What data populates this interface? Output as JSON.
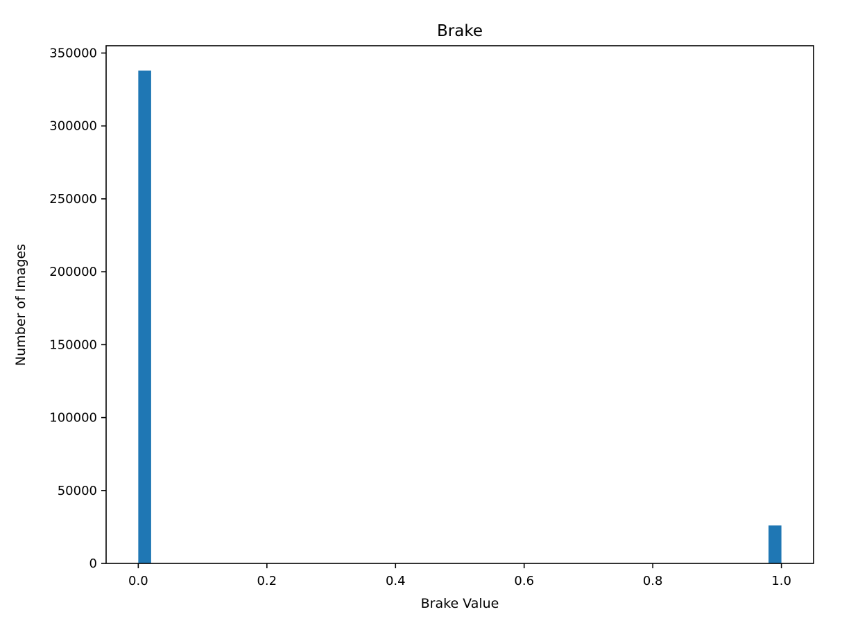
{
  "chart_data": {
    "type": "bar",
    "title": "Brake",
    "xlabel": "Brake Value",
    "ylabel": "Number of Images",
    "xlim": [
      -0.05,
      1.05
    ],
    "ylim": [
      0,
      355000
    ],
    "xticks": [
      0.0,
      0.2,
      0.4,
      0.6,
      0.8,
      1.0
    ],
    "xtick_labels": [
      "0.0",
      "0.2",
      "0.4",
      "0.6",
      "0.8",
      "1.0"
    ],
    "yticks": [
      0,
      50000,
      100000,
      150000,
      200000,
      250000,
      300000,
      350000
    ],
    "ytick_labels": [
      "0",
      "50000",
      "100000",
      "150000",
      "200000",
      "250000",
      "300000",
      "350000"
    ],
    "bins": 50,
    "bars": [
      {
        "x_start": 0.0,
        "x_end": 0.02,
        "value": 338000
      },
      {
        "x_start": 0.98,
        "x_end": 1.0,
        "value": 26000
      }
    ],
    "bar_color": "#1f77b4",
    "grid": false,
    "legend": "none"
  }
}
